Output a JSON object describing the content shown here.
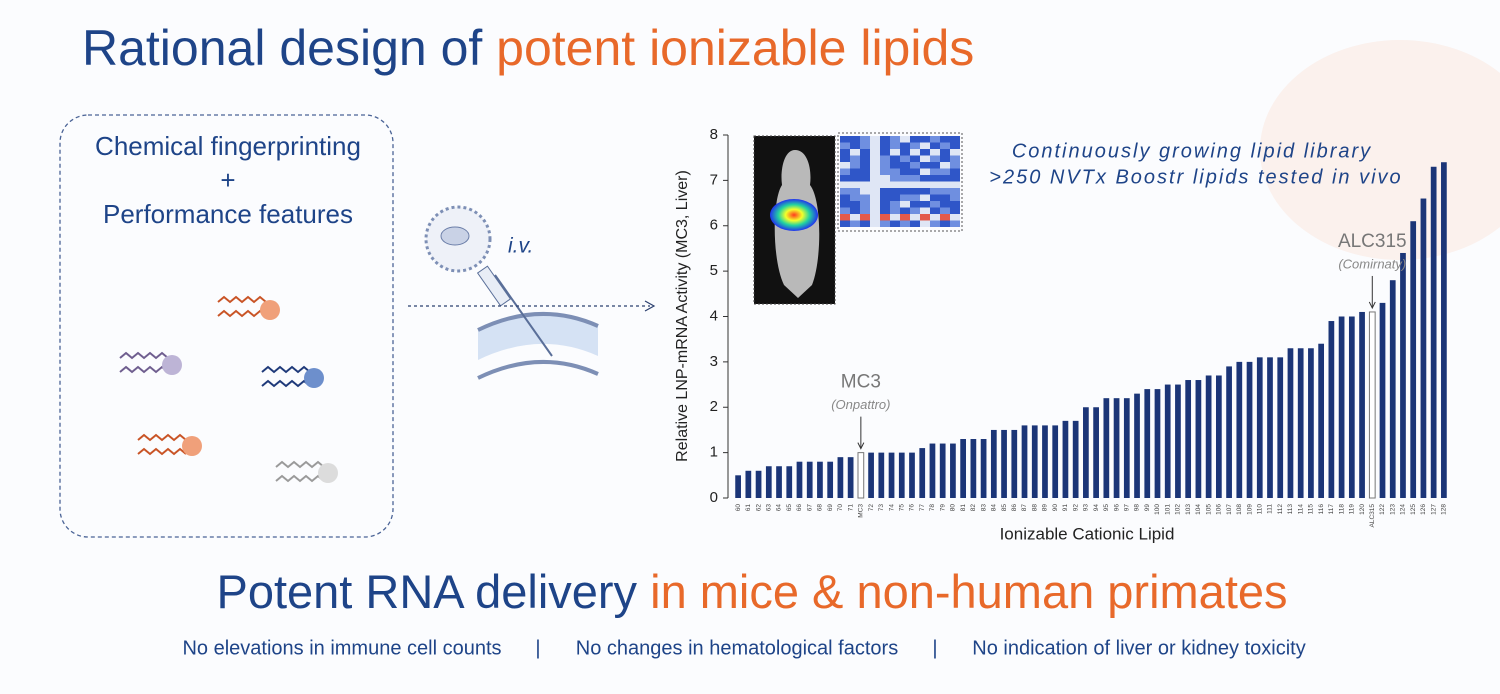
{
  "header": {
    "title_main": "Rational design of ",
    "title_accent": "potent ionizable lipids"
  },
  "design_box": {
    "line1": "Chemical fingerprinting",
    "line2": "+",
    "line3": "Performance features"
  },
  "route_label": "i.v.",
  "chart_data": {
    "type": "bar",
    "inset_text": [
      "Continuously growing lipid library",
      ">250 NVTx Boostr lipids tested in vivo"
    ],
    "xlabel": "Ionizable Cationic Lipid",
    "ylabel": "Relative LNP-mRNA Activity (MC3, Liver)",
    "categories": [
      "60",
      "61",
      "62",
      "63",
      "64",
      "65",
      "66",
      "67",
      "68",
      "69",
      "70",
      "71",
      "MC3",
      "72",
      "73",
      "74",
      "75",
      "76",
      "77",
      "78",
      "79",
      "80",
      "81",
      "82",
      "83",
      "84",
      "85",
      "86",
      "87",
      "88",
      "89",
      "90",
      "91",
      "92",
      "93",
      "94",
      "95",
      "96",
      "97",
      "98",
      "99",
      "100",
      "101",
      "102",
      "103",
      "104",
      "105",
      "106",
      "107",
      "108",
      "109",
      "110",
      "111",
      "112",
      "113",
      "114",
      "115",
      "116",
      "117",
      "118",
      "119",
      "120",
      "ALC315",
      "122",
      "123",
      "124",
      "125",
      "126",
      "127",
      "128"
    ],
    "values": [
      0.5,
      0.6,
      0.6,
      0.7,
      0.7,
      0.7,
      0.8,
      0.8,
      0.8,
      0.8,
      0.9,
      0.9,
      1.0,
      1.0,
      1.0,
      1.0,
      1.0,
      1.0,
      1.1,
      1.2,
      1.2,
      1.2,
      1.3,
      1.3,
      1.3,
      1.5,
      1.5,
      1.5,
      1.6,
      1.6,
      1.6,
      1.6,
      1.7,
      1.7,
      2.0,
      2.0,
      2.2,
      2.2,
      2.2,
      2.3,
      2.4,
      2.4,
      2.5,
      2.5,
      2.6,
      2.6,
      2.7,
      2.7,
      2.9,
      3.0,
      3.0,
      3.1,
      3.1,
      3.1,
      3.3,
      3.3,
      3.3,
      3.4,
      3.9,
      4.0,
      4.0,
      4.1,
      4.1,
      4.3,
      4.8,
      5.4,
      6.1,
      6.6,
      7.3,
      7.4
    ],
    "color": "#1b3577",
    "highlight_color": "#ffffff",
    "ylim": [
      0,
      8
    ],
    "yticks": [
      0,
      1,
      2,
      3,
      4,
      5,
      6,
      7,
      8
    ],
    "grid": false,
    "annotations": [
      {
        "text": "MC3",
        "note": "(Onpattro)",
        "target": "MC3"
      },
      {
        "text": "ALC315",
        "note": "(Comirnaty)",
        "target": "ALC315"
      }
    ]
  },
  "footer": {
    "heading_main": "Potent RNA delivery ",
    "heading_accent": "in mice & non-human primates",
    "items": [
      "No elevations in immune cell counts",
      "No changes in hematological factors",
      "No indication of liver or kidney toxicity"
    ],
    "separator": "|"
  }
}
